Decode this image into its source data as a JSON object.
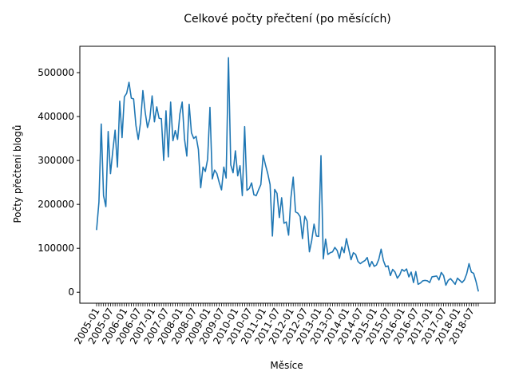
{
  "chart_data": {
    "type": "line",
    "title": "Celkové počty přečtení (po měsících)",
    "xlabel": "Měsíce",
    "ylabel": "Počty přečtení blogů",
    "x_tick_labels": [
      "2005-01",
      "2005-07",
      "2006-01",
      "2006-07",
      "2007-01",
      "2007-07",
      "2008-01",
      "2008-07",
      "2009-01",
      "2009-07",
      "2010-01",
      "2010-07",
      "2011-01",
      "2011-07",
      "2012-01",
      "2012-07",
      "2013-01",
      "2013-07",
      "2014-01",
      "2014-07",
      "2015-01",
      "2015-07",
      "2016-01",
      "2016-07",
      "2017-01",
      "2017-07",
      "2018-01",
      "2018-07"
    ],
    "y_ticks": [
      0,
      100000,
      200000,
      300000,
      400000,
      500000
    ],
    "y_tick_labels": [
      "0",
      "100000",
      "200000",
      "300000",
      "400000",
      "500000"
    ],
    "ylim": [
      -25000,
      560000
    ],
    "grid": false,
    "line_color": "#1f77b4",
    "start_month": "2005-01",
    "series": [
      {
        "values": [
          143000,
          205000,
          383000,
          220000,
          195000,
          366000,
          270000,
          322000,
          369000,
          285000,
          435000,
          352000,
          445000,
          453000,
          478000,
          442000,
          440000,
          380000,
          348000,
          387000,
          459000,
          410000,
          375000,
          395000,
          447000,
          388000,
          422000,
          396000,
          395000,
          300000,
          413000,
          308000,
          433000,
          345000,
          368000,
          348000,
          406000,
          433000,
          349000,
          310000,
          428000,
          363000,
          350000,
          355000,
          325000,
          238000,
          285000,
          275000,
          303000,
          421000,
          258000,
          278000,
          270000,
          250000,
          233000,
          285000,
          260000,
          534000,
          290000,
          272000,
          322000,
          265000,
          288000,
          220000,
          377000,
          232000,
          236000,
          249000,
          222000,
          220000,
          233000,
          245000,
          312000,
          290000,
          270000,
          245000,
          128000,
          234000,
          225000,
          170000,
          215000,
          157000,
          160000,
          130000,
          215000,
          262000,
          183000,
          180000,
          172000,
          122000,
          173000,
          162000,
          92000,
          118000,
          155000,
          128000,
          127000,
          311000,
          76000,
          121000,
          86000,
          90000,
          92000,
          102000,
          95000,
          77000,
          103000,
          90000,
          122000,
          98000,
          74000,
          90000,
          86000,
          70000,
          65000,
          69000,
          72000,
          79000,
          58000,
          70000,
          59000,
          62000,
          75000,
          98000,
          72000,
          58000,
          60000,
          38000,
          52000,
          46000,
          32000,
          39000,
          52000,
          48000,
          53000,
          35000,
          46000,
          22000,
          47000,
          18000,
          21000,
          26000,
          27000,
          26000,
          22000,
          35000,
          36000,
          37000,
          28000,
          45000,
          38000,
          16000,
          27000,
          31000,
          25000,
          18000,
          32000,
          27000,
          22000,
          28000,
          42000,
          65000,
          46000,
          43000,
          25000,
          3000
        ]
      }
    ]
  }
}
